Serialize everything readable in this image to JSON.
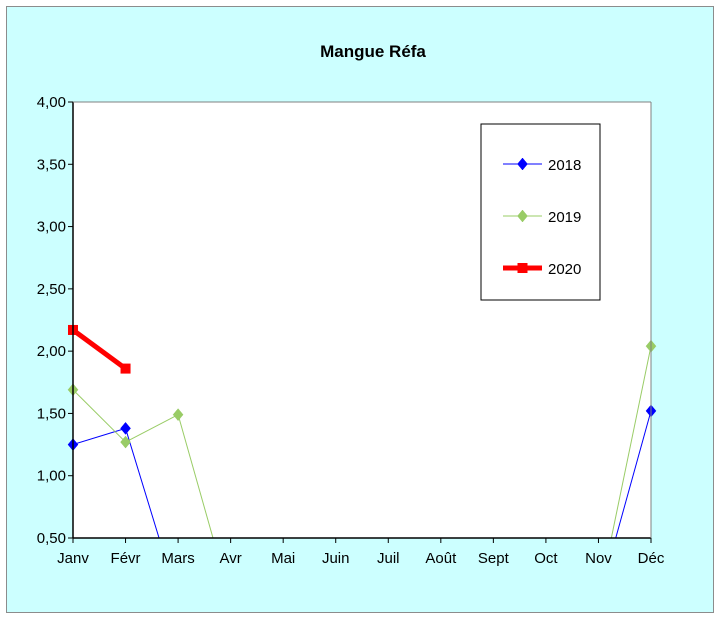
{
  "chart_data": {
    "type": "line",
    "title": "Mangue Réfa",
    "xlabel": "",
    "ylabel": "",
    "categories": [
      "Janv",
      "Févr",
      "Mars",
      "Avr",
      "Mai",
      "Juin",
      "Juil",
      "Août",
      "Sept",
      "Oct",
      "Nov",
      "Déc"
    ],
    "ylim": [
      0.5,
      4.0
    ],
    "yticks": [
      "0,50",
      "1,00",
      "1,50",
      "2,00",
      "2,50",
      "3,00",
      "3,50",
      "4,00"
    ],
    "ytick_values": [
      0.5,
      1.0,
      1.5,
      2.0,
      2.5,
      3.0,
      3.5,
      4.0
    ],
    "grid": false,
    "legend_position": "top-right",
    "background_color": "#ccffff",
    "plot_background_color": "#ffffff",
    "series": [
      {
        "name": "2018",
        "color": "#0000ff",
        "marker": "diamond",
        "line_width": 1,
        "values": [
          1.25,
          1.38,
          0.0,
          null,
          null,
          null,
          null,
          null,
          null,
          null,
          0.0,
          1.52
        ]
      },
      {
        "name": "2019",
        "color": "#99cc66",
        "marker": "diamond",
        "line_width": 1,
        "values": [
          1.69,
          1.27,
          1.49,
          0.0,
          null,
          null,
          null,
          null,
          null,
          null,
          0.0,
          2.04
        ]
      },
      {
        "name": "2020",
        "color": "#ff0000",
        "marker": "square",
        "line_width": 5,
        "values": [
          2.17,
          1.86,
          null,
          null,
          null,
          null,
          null,
          null,
          null,
          null,
          null,
          null
        ]
      }
    ]
  }
}
